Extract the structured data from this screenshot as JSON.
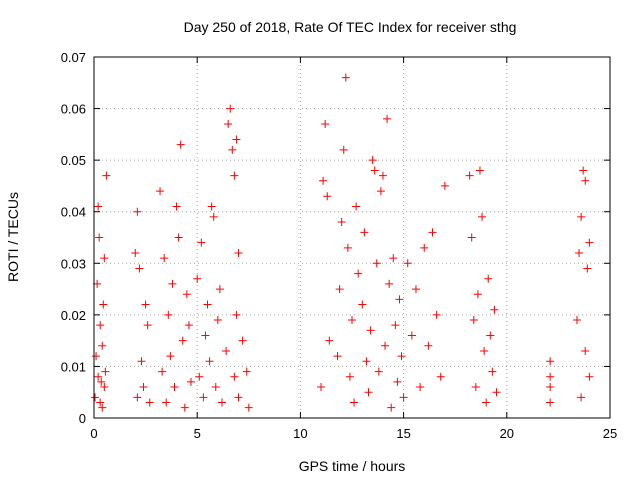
{
  "chart_data": {
    "type": "scatter",
    "title": "Day 250 of 2018, Rate Of TEC Index for receiver sthg",
    "xlabel": "GPS time / hours",
    "ylabel": "ROTI / TECUs",
    "xlim": [
      0,
      25
    ],
    "ylim": [
      0,
      0.07
    ],
    "xticks": [
      0,
      5,
      10,
      15,
      20,
      25
    ],
    "yticks": [
      0,
      0.01,
      0.02,
      0.03,
      0.04,
      0.05,
      0.06,
      0.07
    ],
    "xtick_labels": [
      "0",
      "5",
      "10",
      "15",
      "20",
      "25"
    ],
    "ytick_labels": [
      "0",
      "0.01",
      "0.02",
      "0.03",
      "0.04",
      "0.05",
      "0.06",
      "0.07"
    ],
    "grid": true,
    "marker": "+",
    "color": "#ff0000",
    "series": [
      {
        "name": "ROTI",
        "points": [
          [
            0.05,
            0.004
          ],
          [
            0.1,
            0.012
          ],
          [
            0.15,
            0.026
          ],
          [
            0.2,
            0.041
          ],
          [
            0.25,
            0.035
          ],
          [
            0.3,
            0.018
          ],
          [
            0.35,
            0.007
          ],
          [
            0.4,
            0.002
          ],
          [
            0.45,
            0.022
          ],
          [
            0.5,
            0.031
          ],
          [
            0.55,
            0.009
          ],
          [
            0.6,
            0.047
          ],
          [
            0.2,
            0.008
          ],
          [
            0.3,
            0.003
          ],
          [
            0.4,
            0.014
          ],
          [
            0.5,
            0.006
          ],
          [
            2.0,
            0.032
          ],
          [
            2.1,
            0.004
          ],
          [
            2.2,
            0.029
          ],
          [
            2.3,
            0.011
          ],
          [
            2.4,
            0.006
          ],
          [
            2.5,
            0.022
          ],
          [
            2.6,
            0.018
          ],
          [
            2.7,
            0.003
          ],
          [
            2.1,
            0.04
          ],
          [
            3.2,
            0.044
          ],
          [
            3.3,
            0.009
          ],
          [
            3.4,
            0.031
          ],
          [
            3.5,
            0.003
          ],
          [
            3.6,
            0.02
          ],
          [
            3.7,
            0.012
          ],
          [
            3.8,
            0.026
          ],
          [
            3.9,
            0.006
          ],
          [
            4.0,
            0.041
          ],
          [
            4.1,
            0.035
          ],
          [
            4.2,
            0.053
          ],
          [
            4.3,
            0.015
          ],
          [
            4.4,
            0.002
          ],
          [
            4.5,
            0.024
          ],
          [
            4.6,
            0.018
          ],
          [
            4.7,
            0.007
          ],
          [
            5.0,
            0.027
          ],
          [
            5.1,
            0.008
          ],
          [
            5.2,
            0.034
          ],
          [
            5.3,
            0.004
          ],
          [
            5.4,
            0.016
          ],
          [
            5.5,
            0.022
          ],
          [
            5.6,
            0.011
          ],
          [
            5.7,
            0.041
          ],
          [
            5.8,
            0.039
          ],
          [
            5.9,
            0.006
          ],
          [
            6.0,
            0.019
          ],
          [
            6.1,
            0.025
          ],
          [
            6.2,
            0.003
          ],
          [
            6.4,
            0.013
          ],
          [
            6.5,
            0.057
          ],
          [
            6.6,
            0.06
          ],
          [
            6.7,
            0.052
          ],
          [
            6.8,
            0.047
          ],
          [
            6.9,
            0.054
          ],
          [
            7.0,
            0.032
          ],
          [
            6.8,
            0.008
          ],
          [
            6.9,
            0.02
          ],
          [
            7.0,
            0.004
          ],
          [
            7.2,
            0.015
          ],
          [
            7.4,
            0.009
          ],
          [
            7.5,
            0.002
          ],
          [
            11.0,
            0.006
          ],
          [
            11.1,
            0.046
          ],
          [
            11.2,
            0.057
          ],
          [
            11.3,
            0.043
          ],
          [
            11.4,
            0.015
          ],
          [
            11.8,
            0.012
          ],
          [
            11.9,
            0.025
          ],
          [
            12.0,
            0.038
          ],
          [
            12.1,
            0.052
          ],
          [
            12.2,
            0.066
          ],
          [
            12.3,
            0.033
          ],
          [
            12.4,
            0.008
          ],
          [
            12.5,
            0.019
          ],
          [
            12.6,
            0.003
          ],
          [
            12.7,
            0.041
          ],
          [
            12.8,
            0.028
          ],
          [
            13.0,
            0.022
          ],
          [
            13.1,
            0.036
          ],
          [
            13.2,
            0.011
          ],
          [
            13.3,
            0.005
          ],
          [
            13.4,
            0.017
          ],
          [
            13.5,
            0.05
          ],
          [
            13.6,
            0.048
          ],
          [
            13.7,
            0.03
          ],
          [
            13.8,
            0.009
          ],
          [
            13.9,
            0.044
          ],
          [
            14.0,
            0.047
          ],
          [
            14.1,
            0.014
          ],
          [
            14.2,
            0.058
          ],
          [
            14.3,
            0.026
          ],
          [
            14.4,
            0.002
          ],
          [
            14.5,
            0.031
          ],
          [
            14.6,
            0.018
          ],
          [
            14.7,
            0.007
          ],
          [
            14.8,
            0.023
          ],
          [
            14.9,
            0.012
          ],
          [
            15.0,
            0.004
          ],
          [
            15.2,
            0.03
          ],
          [
            15.4,
            0.016
          ],
          [
            15.6,
            0.025
          ],
          [
            15.8,
            0.006
          ],
          [
            16.0,
            0.033
          ],
          [
            16.2,
            0.014
          ],
          [
            16.4,
            0.036
          ],
          [
            16.6,
            0.02
          ],
          [
            16.8,
            0.008
          ],
          [
            17.0,
            0.045
          ],
          [
            18.2,
            0.047
          ],
          [
            18.3,
            0.035
          ],
          [
            18.4,
            0.019
          ],
          [
            18.5,
            0.006
          ],
          [
            18.6,
            0.024
          ],
          [
            18.7,
            0.048
          ],
          [
            18.8,
            0.039
          ],
          [
            18.9,
            0.013
          ],
          [
            19.0,
            0.003
          ],
          [
            19.1,
            0.027
          ],
          [
            19.2,
            0.016
          ],
          [
            19.3,
            0.009
          ],
          [
            19.4,
            0.021
          ],
          [
            19.5,
            0.005
          ],
          [
            22.1,
            0.011
          ],
          [
            22.1,
            0.006
          ],
          [
            22.1,
            0.003
          ],
          [
            22.1,
            0.008
          ],
          [
            23.4,
            0.019
          ],
          [
            23.5,
            0.032
          ],
          [
            23.6,
            0.039
          ],
          [
            23.7,
            0.048
          ],
          [
            23.8,
            0.046
          ],
          [
            23.9,
            0.029
          ],
          [
            24.0,
            0.034
          ],
          [
            23.6,
            0.004
          ],
          [
            23.8,
            0.013
          ],
          [
            24.0,
            0.008
          ]
        ]
      }
    ]
  }
}
